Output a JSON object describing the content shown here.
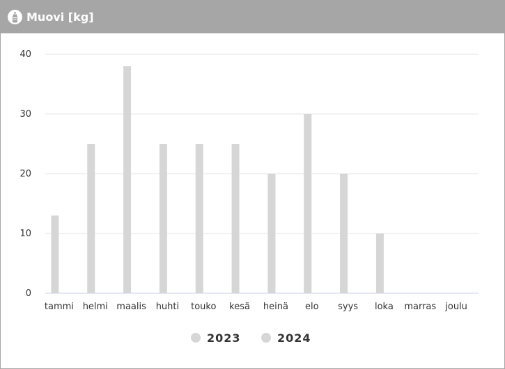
{
  "panel": {
    "title": "Muovi [kg]",
    "icon": "bottle-icon",
    "header_color": "#a6a6a6"
  },
  "chart_data": {
    "type": "bar",
    "title": "Muovi [kg]",
    "xlabel": "",
    "ylabel": "",
    "categories": [
      "tammi",
      "helmi",
      "maalis",
      "huhti",
      "touko",
      "kesä",
      "heinä",
      "elo",
      "syys",
      "loka",
      "marras",
      "joulu"
    ],
    "series": [
      {
        "name": "2023",
        "color": "#d6d6d6",
        "values": [
          13,
          25,
          38,
          25,
          25,
          25,
          20,
          30,
          20,
          10,
          0,
          0
        ]
      },
      {
        "name": "2024",
        "color": "#d6d6d6",
        "values": [
          0,
          0,
          0,
          0,
          0,
          0,
          0,
          0,
          0,
          0,
          0,
          0
        ]
      }
    ],
    "ylim": [
      0,
      40
    ],
    "yticks": [
      0,
      10,
      20,
      30,
      40
    ],
    "grid": true,
    "legend": "bottom-center"
  }
}
